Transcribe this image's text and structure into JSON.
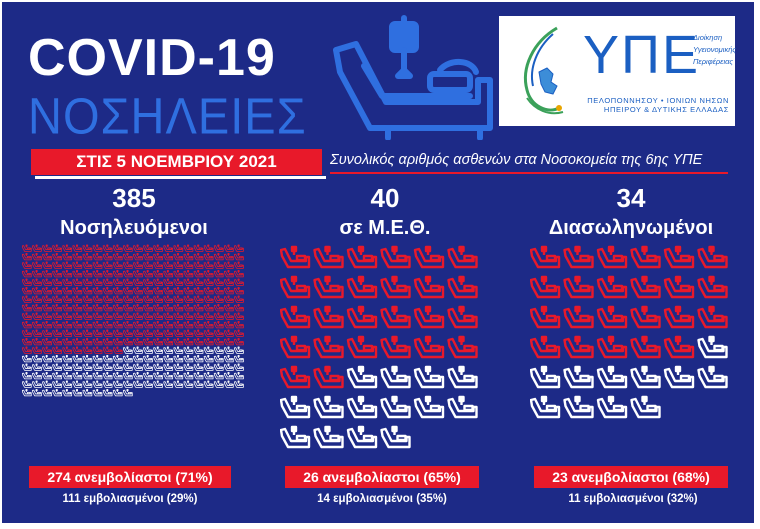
{
  "header": {
    "title": "COVID-19",
    "subtitle": "ΝΟΣΗΛΕΙΕΣ",
    "hero_icon": "hospital-bed-iv-icon"
  },
  "logo": {
    "abbr": "ΥΠΕ",
    "side_lines": [
      "Διοίκηση",
      "Υγειονομικής",
      "Περιφέρειας"
    ],
    "region_lines": [
      "ΠΕΛΟΠΟΝΝΗΣΟΥ • ΙΟΝΙΩΝ ΝΗΣΩΝ",
      "ΗΠΕΙΡΟΥ & ΔΥΤΙΚΗΣ ΕΛΛΑΔΑΣ"
    ]
  },
  "date": "ΣΤΙΣ 5 ΝΟΕΜΒΡΙΟΥ 2021",
  "description": "Συνολικός αριθμός ασθενών στα Νοσοκομεία της 6ης ΥΠΕ",
  "colors": {
    "background": "#1d2a87",
    "unvaccinated": "#e8192a",
    "vaccinated": "#ffffff",
    "accent_blue": "#2f6fe0"
  },
  "stats": [
    {
      "id": "hospitalized",
      "count": "385",
      "label": "Νοσηλευόμενοι",
      "total": 385,
      "unvaccinated": 274,
      "vaccinated": 111,
      "unvaccinated_text": "274 ανεμβολίαστοι (71%)",
      "vaccinated_text": "111 εμβολιασμένοι (29%)"
    },
    {
      "id": "icu",
      "count": "40",
      "label": "σε Μ.Ε.Θ.",
      "total": 40,
      "unvaccinated": 26,
      "vaccinated": 14,
      "unvaccinated_text": "26 ανεμβολίαστοι (65%)",
      "vaccinated_text": "14 εμβολιασμένοι (35%)"
    },
    {
      "id": "intubated",
      "count": "34",
      "label": "Διασωληνωμένοι",
      "total": 34,
      "unvaccinated": 23,
      "vaccinated": 11,
      "unvaccinated_text": "23 ανεμβολίαστοι (68%)",
      "vaccinated_text": "11 εμβολιασμένοι (32%)"
    }
  ]
}
